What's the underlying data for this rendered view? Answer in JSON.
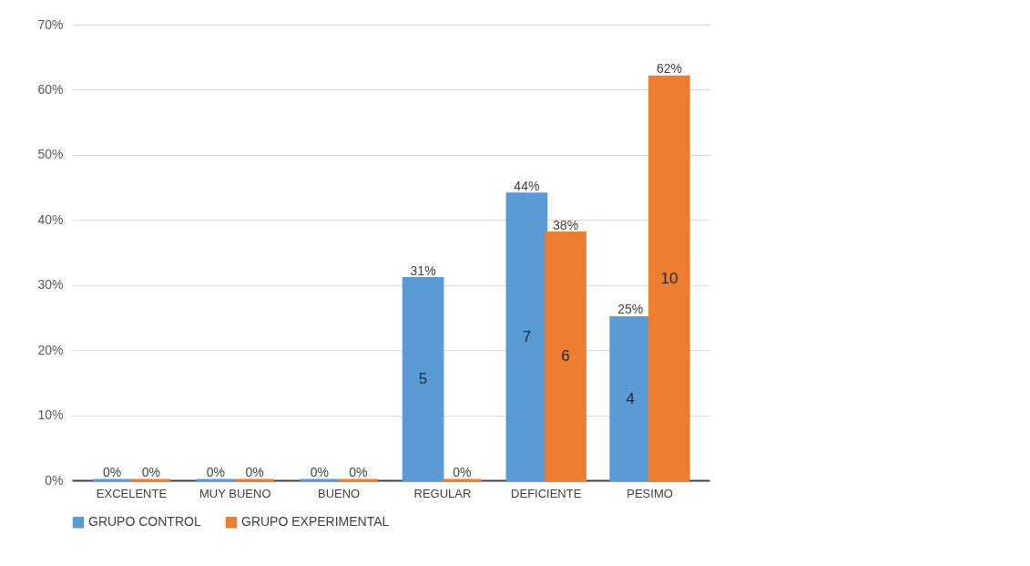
{
  "chart_data": {
    "type": "bar",
    "categories": [
      "EXCELENTE",
      "MUY BUENO",
      "BUENO",
      "REGULAR",
      "DEFICIENTE",
      "PESIMO"
    ],
    "series": [
      {
        "name": "GRUPO  CONTROL",
        "color": "#5b9bd5",
        "values": [
          0,
          0,
          0,
          31,
          44,
          25
        ],
        "value_labels": [
          "0%",
          "0%",
          "0%",
          "31%",
          "44%",
          "25%"
        ]
      },
      {
        "name": "GRUPO EXPERIMENTAL",
        "color": "#ed7d31",
        "values": [
          0,
          0,
          0,
          0,
          38,
          62
        ],
        "value_labels": [
          "0%",
          "0%",
          "0%",
          "0%",
          "38%",
          "62%"
        ]
      }
    ],
    "ylim": [
      0,
      70
    ],
    "yticks": [
      {
        "value": 0,
        "label": "0%"
      },
      {
        "value": 10,
        "label": "10%"
      },
      {
        "value": 20,
        "label": "20%"
      },
      {
        "value": 30,
        "label": "30%"
      },
      {
        "value": 40,
        "label": "40%"
      },
      {
        "value": 50,
        "label": "50%"
      },
      {
        "value": 60,
        "label": "60%"
      },
      {
        "value": 70,
        "label": "70%"
      }
    ],
    "annotations": [
      {
        "text": "5",
        "x": "REGULAR",
        "y": 15.5
      },
      {
        "text": "7",
        "x": "DEFICIENTE",
        "y": 22
      },
      {
        "text": "6",
        "x": "DEFICIENTE",
        "y": 19
      },
      {
        "text": "4",
        "x": "PESIMO",
        "y": 12.5
      },
      {
        "text": "10",
        "x": "PESIMO",
        "y": 31
      }
    ],
    "grid": "y",
    "legend": "bottom"
  }
}
